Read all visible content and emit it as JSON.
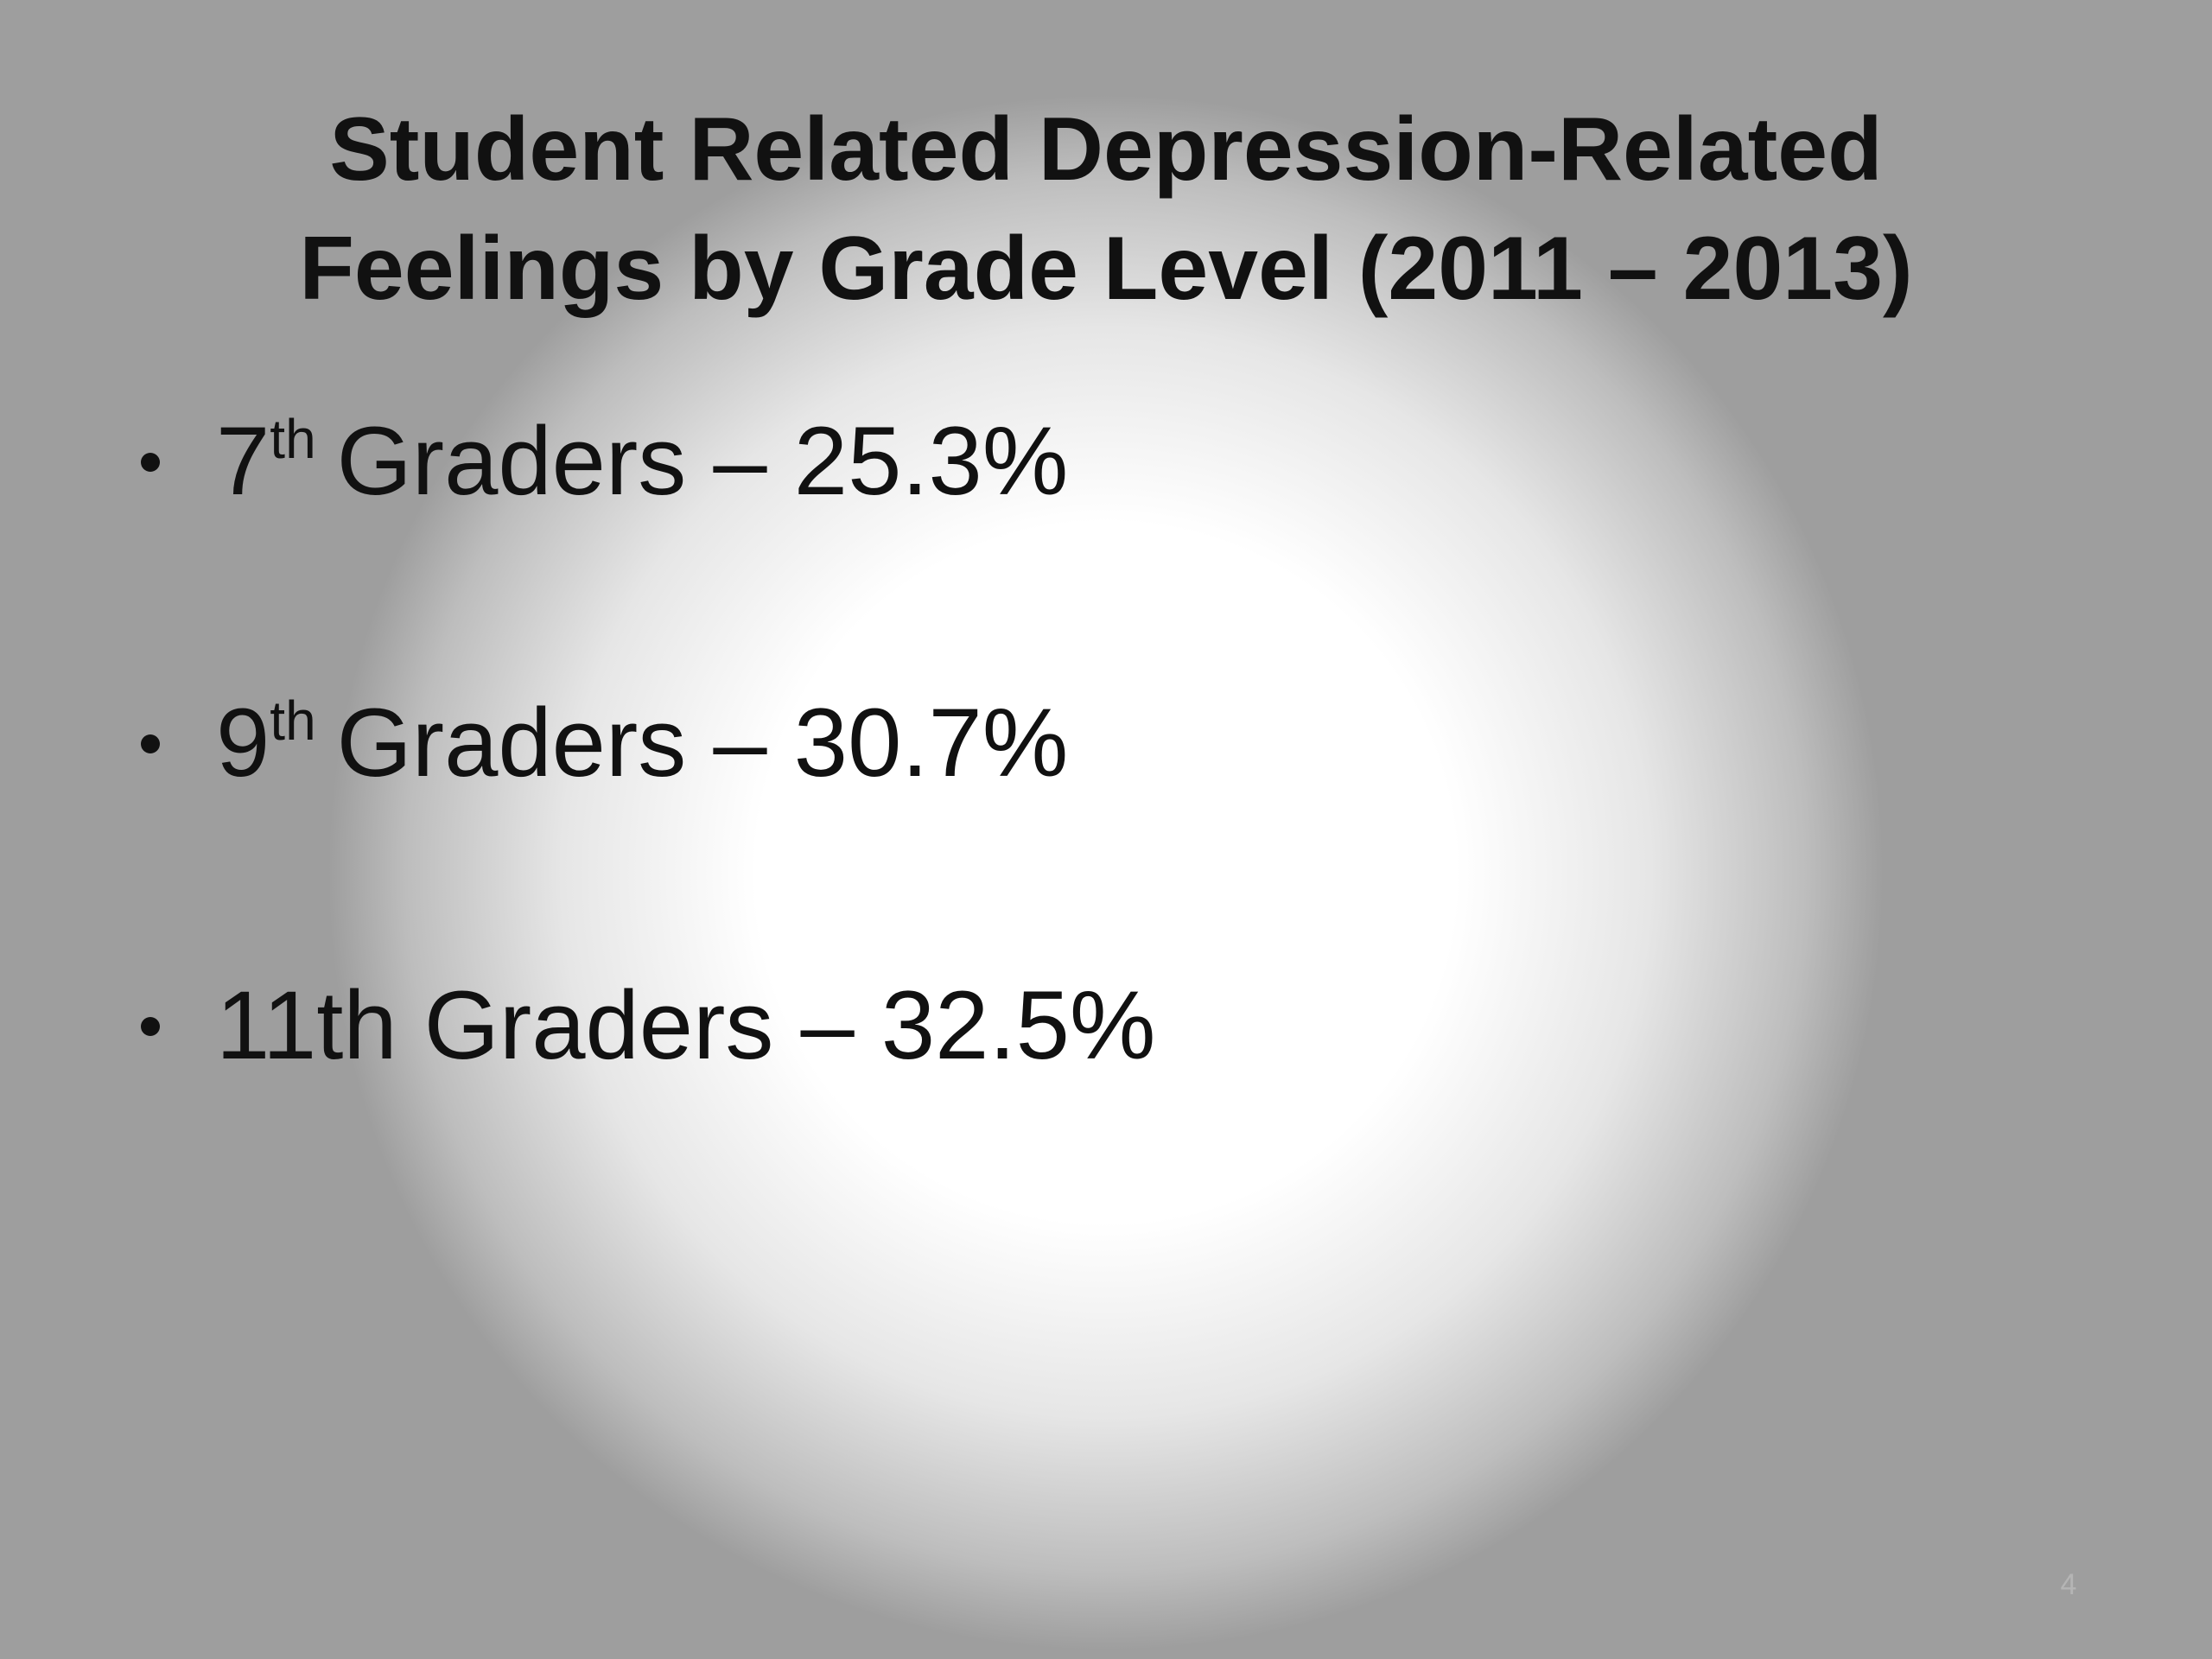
{
  "title_lines": [
    "Student Related Depression-Related",
    "Feelings by Grade Level (2011 – 2013)"
  ],
  "bullets": [
    {
      "ordinal": "7",
      "suffix": "th",
      "text": "Graders – 25.3%"
    },
    {
      "ordinal": "9",
      "suffix": "th",
      "text": "Graders – 30.7%"
    },
    {
      "text": "11th Graders – 32.5%"
    }
  ],
  "page_number": "4"
}
